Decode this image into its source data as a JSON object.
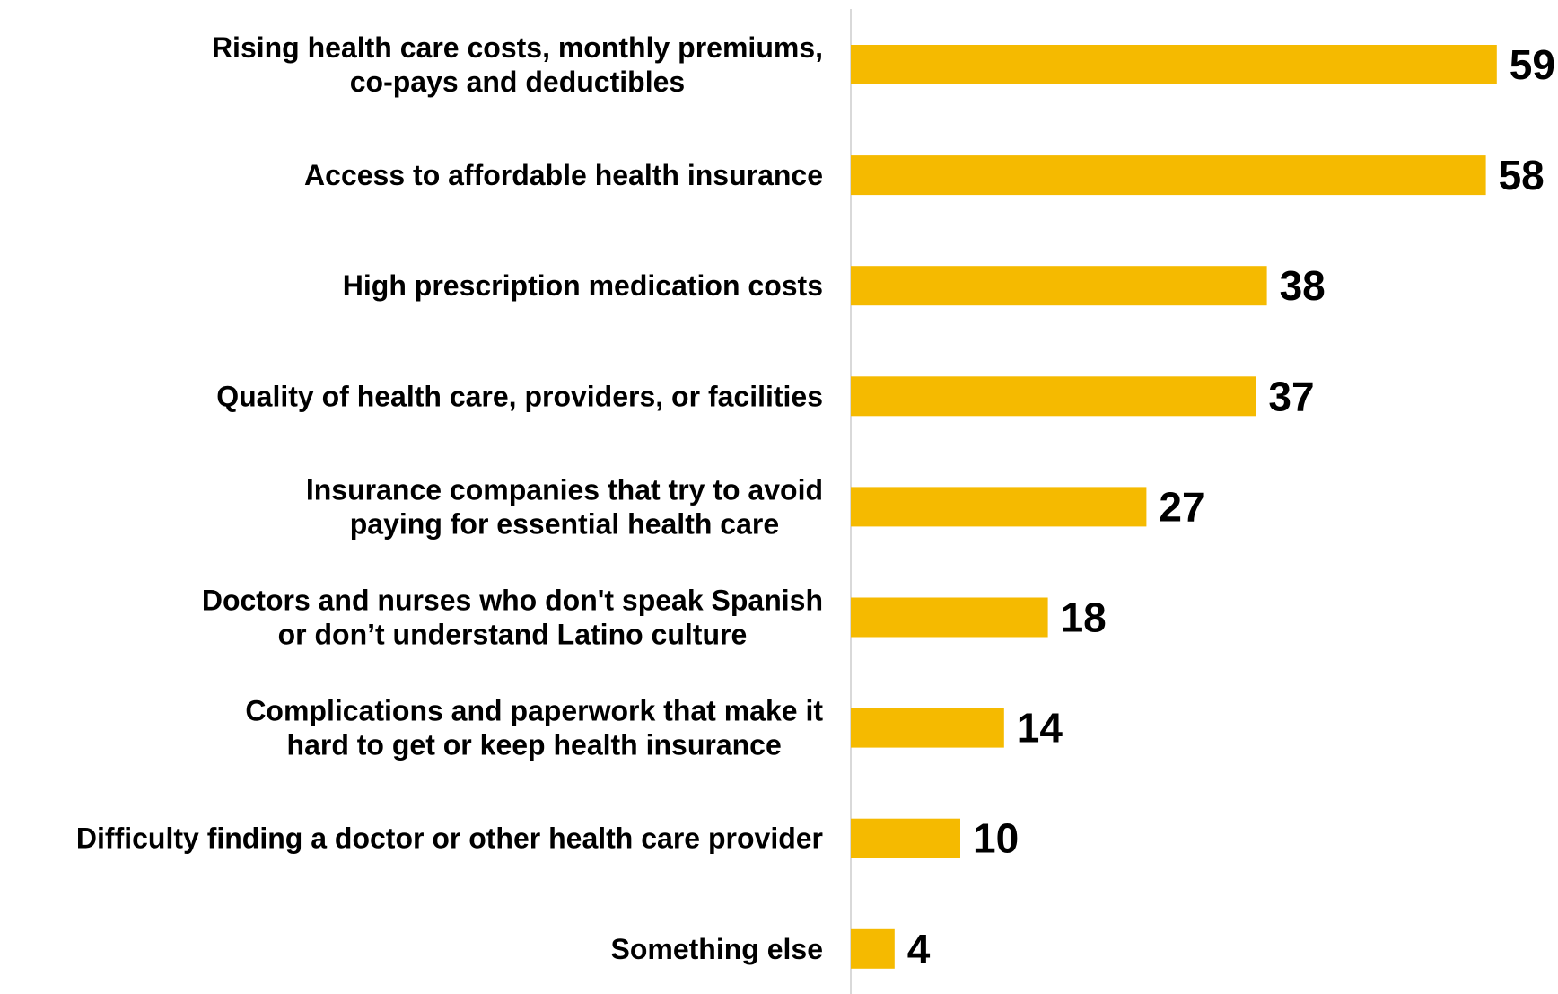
{
  "chart_data": {
    "type": "bar",
    "orientation": "horizontal",
    "categories": [
      [
        "Rising health care costs, monthly premiums,",
        "co-pays and deductibles"
      ],
      [
        "Access to affordable health insurance"
      ],
      [
        "High prescription medication costs"
      ],
      [
        "Quality of health care, providers, or facilities"
      ],
      [
        "Insurance companies that try to avoid",
        "paying for essential health care"
      ],
      [
        "Doctors and nurses who don't speak Spanish",
        "or don’t understand Latino culture"
      ],
      [
        "Complications and paperwork that make it",
        "hard to get or keep health insurance"
      ],
      [
        "Difficulty finding a doctor or other health care provider"
      ],
      [
        "Something else"
      ]
    ],
    "values": [
      59,
      58,
      38,
      37,
      27,
      18,
      14,
      10,
      4
    ],
    "title": "",
    "xlabel": "",
    "ylabel": "",
    "xlim": [
      0,
      60
    ],
    "grid": false,
    "legend": "none",
    "bar_color": "#F5BA00",
    "axis_color": "#D9D9D9"
  }
}
